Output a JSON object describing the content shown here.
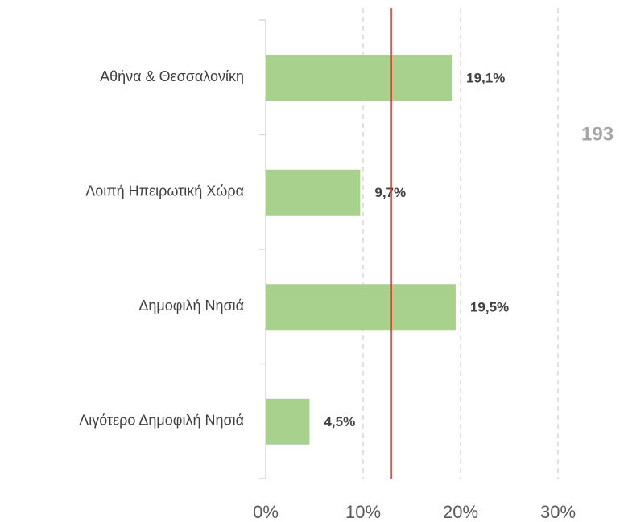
{
  "chart_data": {
    "type": "barh",
    "categories": [
      "Αθήνα & Θεσσαλονίκη",
      "Λοιπή Ηπειρωτική Χώρα",
      "Δημοφιλή Νησιά",
      "Λιγότερο Δημοφιλή Νησιά"
    ],
    "values": [
      19.1,
      9.7,
      19.5,
      4.5
    ],
    "value_labels": [
      "19,1%",
      "9,7%",
      "19,5%",
      "4,5%"
    ],
    "color": "#a9d18e",
    "xlim": [
      0,
      30
    ],
    "xticks": [
      {
        "value": 0,
        "label": "0%"
      },
      {
        "value": 10,
        "label": "10%"
      },
      {
        "value": 20,
        "label": "20%"
      },
      {
        "value": 30,
        "label": "30%"
      }
    ],
    "grid": true,
    "reference_line": {
      "value": 12.9,
      "color": "#e0302a"
    },
    "annotation": "193"
  }
}
